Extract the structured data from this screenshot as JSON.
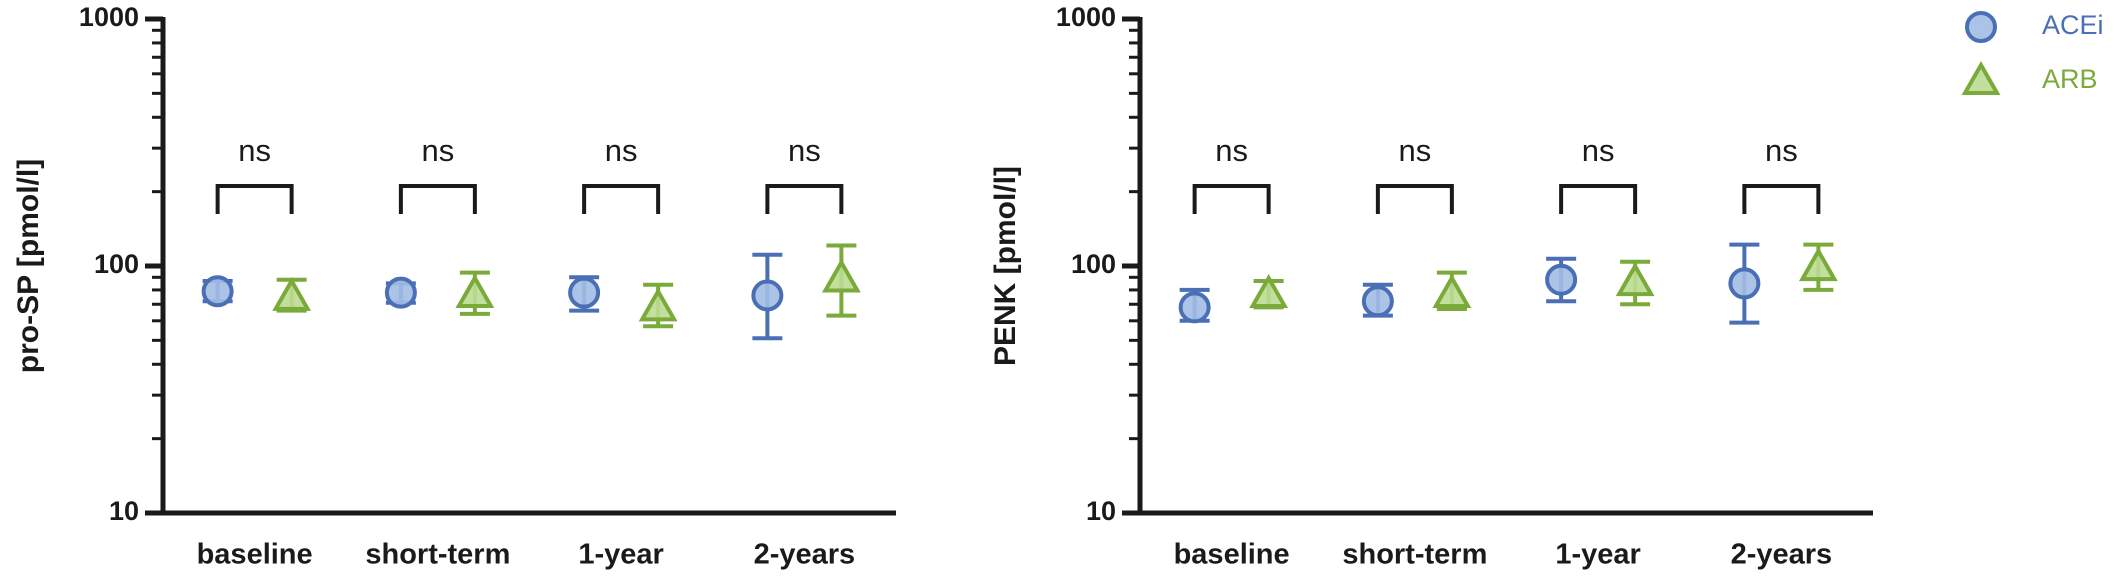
{
  "chart_data": [
    {
      "type": "errorbar",
      "ylabel": "pro-SP [pmol/l]",
      "log_y": true,
      "minor_ticks": true,
      "legend": "top-right",
      "categories": [
        "baseline",
        "short-term",
        "1-year",
        "2-years"
      ],
      "annotations": [
        "ns",
        "ns",
        "ns",
        "ns"
      ],
      "ylim": [
        10,
        1000
      ],
      "yticks": [
        10,
        100,
        1000
      ],
      "series": [
        {
          "name": "ACEi",
          "color": "#4a6fb5",
          "fill": "#a3bce6",
          "marker": "circle",
          "values": [
            79,
            78,
            78,
            76
          ],
          "lower": [
            72,
            71,
            66,
            51
          ],
          "upper": [
            87,
            85,
            90,
            111
          ]
        },
        {
          "name": "ARB",
          "color": "#7aab3a",
          "fill": "#bcdc92",
          "marker": "triangle",
          "values": [
            75,
            77,
            68,
            89
          ],
          "lower": [
            66,
            64,
            57,
            63
          ],
          "upper": [
            88,
            94,
            84,
            121
          ]
        }
      ]
    },
    {
      "type": "errorbar",
      "ylabel": "PENK [pmol/l]",
      "log_y": true,
      "minor_ticks": true,
      "categories": [
        "baseline",
        "short-term",
        "1-year",
        "2-years"
      ],
      "annotations": [
        "ns",
        "ns",
        "ns",
        "ns"
      ],
      "ylim": [
        10,
        1000
      ],
      "yticks": [
        10,
        100,
        1000
      ],
      "series": [
        {
          "color": "#4a6fb5",
          "fill": "#a3bce6",
          "marker": "circle",
          "values": [
            68,
            72,
            88,
            85
          ],
          "lower": [
            60,
            63,
            72,
            59
          ],
          "upper": [
            80,
            84,
            107,
            122
          ]
        },
        {
          "color": "#7aab3a",
          "fill": "#bcdc92",
          "marker": "triangle",
          "values": [
            77,
            77,
            86,
            99
          ],
          "lower": [
            68,
            67,
            70,
            80
          ],
          "upper": [
            87,
            94,
            104,
            122
          ]
        }
      ]
    }
  ]
}
